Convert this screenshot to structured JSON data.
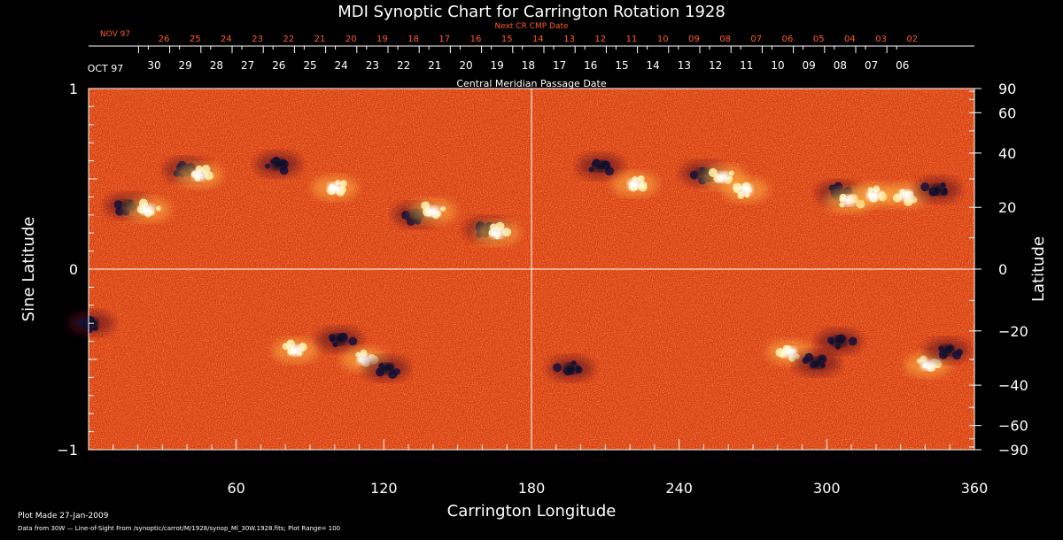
{
  "chart_data": {
    "type": "heatmap",
    "title": "MDI Synoptic Chart for Carrington Rotation 1928",
    "xlabel": "Carrington Longitude",
    "ylabel_left": "Sine Latitude",
    "ylabel_right": "Latitude",
    "xlim": [
      0,
      360
    ],
    "ylim": [
      -1,
      1
    ],
    "x_ticks": [
      60,
      120,
      180,
      240,
      300,
      360
    ],
    "y_ticks_left": [
      1,
      0,
      -1
    ],
    "y_tick_labels_left": [
      "1",
      "0",
      "−1"
    ],
    "y_ticks_right": [
      90,
      60,
      40,
      20,
      0,
      -20,
      -40,
      -60,
      -90
    ],
    "y_tick_labels_right": [
      "90",
      "60",
      "40",
      "20",
      "0",
      "−20",
      "−40",
      "−60",
      "−90"
    ],
    "top_axis_label": "Central Meridian Passage Date",
    "top_month_label": "OCT 97",
    "top_dates": [
      "30",
      "29",
      "28",
      "27",
      "26",
      "25",
      "24",
      "23",
      "22",
      "21",
      "20",
      "19",
      "18",
      "17",
      "16",
      "15",
      "14",
      "13",
      "12",
      "11",
      "10",
      "09",
      "08",
      "07",
      "06"
    ],
    "next_cr_label": "Next CR CMP Date",
    "next_month_label": "NOV 97",
    "next_dates": [
      "26",
      "25",
      "24",
      "23",
      "22",
      "21",
      "20",
      "19",
      "18",
      "17",
      "16",
      "15",
      "14",
      "13",
      "12",
      "11",
      "10",
      "09",
      "08",
      "07",
      "06",
      "05",
      "04",
      "03",
      "02"
    ],
    "grid": "center cross at 180° longitude and 0 sine latitude",
    "active_regions": [
      {
        "lon": 16,
        "sinlat": 0.35,
        "polarity": "negative"
      },
      {
        "lon": 24,
        "sinlat": 0.33,
        "polarity": "positive"
      },
      {
        "lon": 40,
        "sinlat": 0.55,
        "polarity": "negative"
      },
      {
        "lon": 45,
        "sinlat": 0.52,
        "polarity": "positive"
      },
      {
        "lon": 77,
        "sinlat": 0.58,
        "polarity": "negative"
      },
      {
        "lon": 100,
        "sinlat": 0.45,
        "polarity": "positive"
      },
      {
        "lon": 133,
        "sinlat": 0.3,
        "polarity": "negative"
      },
      {
        "lon": 140,
        "sinlat": 0.32,
        "polarity": "positive"
      },
      {
        "lon": 162,
        "sinlat": 0.22,
        "polarity": "negative"
      },
      {
        "lon": 166,
        "sinlat": 0.2,
        "polarity": "positive"
      },
      {
        "lon": 208,
        "sinlat": 0.57,
        "polarity": "negative"
      },
      {
        "lon": 222,
        "sinlat": 0.47,
        "polarity": "positive"
      },
      {
        "lon": 250,
        "sinlat": 0.53,
        "polarity": "negative"
      },
      {
        "lon": 258,
        "sinlat": 0.51,
        "polarity": "positive"
      },
      {
        "lon": 267,
        "sinlat": 0.44,
        "polarity": "positive"
      },
      {
        "lon": 305,
        "sinlat": 0.42,
        "polarity": "negative"
      },
      {
        "lon": 309,
        "sinlat": 0.38,
        "polarity": "positive"
      },
      {
        "lon": 319,
        "sinlat": 0.41,
        "polarity": "positive"
      },
      {
        "lon": 332,
        "sinlat": 0.41,
        "polarity": "positive"
      },
      {
        "lon": 345,
        "sinlat": 0.44,
        "polarity": "negative"
      },
      {
        "lon": 1,
        "sinlat": -0.3,
        "polarity": "negative"
      },
      {
        "lon": 84,
        "sinlat": -0.45,
        "polarity": "positive"
      },
      {
        "lon": 102,
        "sinlat": -0.39,
        "polarity": "negative"
      },
      {
        "lon": 112,
        "sinlat": -0.5,
        "polarity": "positive"
      },
      {
        "lon": 121,
        "sinlat": -0.55,
        "polarity": "negative"
      },
      {
        "lon": 196,
        "sinlat": -0.55,
        "polarity": "negative"
      },
      {
        "lon": 285,
        "sinlat": -0.46,
        "polarity": "positive"
      },
      {
        "lon": 296,
        "sinlat": -0.52,
        "polarity": "negative"
      },
      {
        "lon": 305,
        "sinlat": -0.4,
        "polarity": "negative"
      },
      {
        "lon": 341,
        "sinlat": -0.53,
        "polarity": "positive"
      },
      {
        "lon": 349,
        "sinlat": -0.45,
        "polarity": "negative"
      }
    ],
    "colors": {
      "background": "#000000",
      "field_base": "#e03c12",
      "negative": "#14103a",
      "positive": "#fff4b0",
      "grid": "#ffffff",
      "next_cr_text": "#ff5a2a"
    }
  },
  "footer": {
    "plot_made": "Plot Made 27-Jan-2009",
    "data_source": "Data from 30W — Line-of-Sight From /synoptic/carrot/M/1928/synop_Ml_30W.1928.fits; Plot Range=  100"
  }
}
